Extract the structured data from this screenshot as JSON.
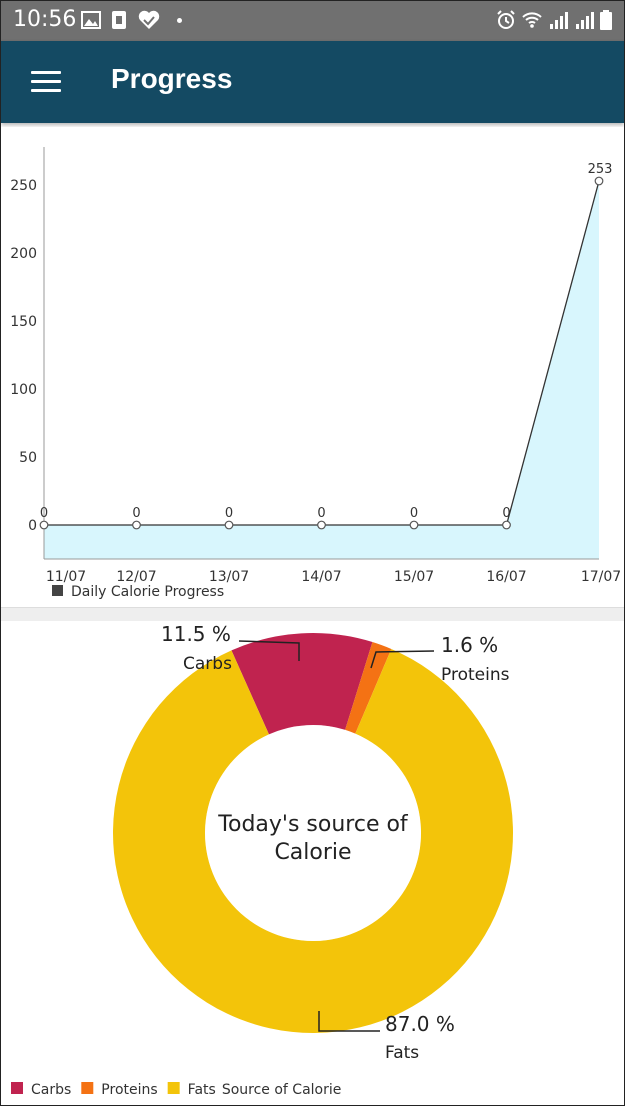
{
  "status_bar": {
    "time": "10:56"
  },
  "app_bar": {
    "title": "Progress",
    "menu_icon": "hamburger-menu-icon"
  },
  "line_chart": {
    "chart_data": {
      "type": "area",
      "categories": [
        "11/07",
        "12/07",
        "13/07",
        "14/07",
        "15/07",
        "16/07",
        "17/07"
      ],
      "series": [
        {
          "name": "Daily Calorie Progress",
          "values": [
            0,
            0,
            0,
            0,
            0,
            0,
            253
          ],
          "color": "#333333",
          "fill": "#d8f6fd"
        }
      ],
      "y_ticks": [
        "0",
        "50",
        "100",
        "150",
        "200",
        "250"
      ],
      "ylim": [
        -25,
        278
      ],
      "legend": "bottom-left",
      "grid": false
    }
  },
  "pie_chart": {
    "chart_data": {
      "type": "pie",
      "center_text": [
        "Today's source of",
        "Calorie"
      ],
      "slices": [
        {
          "label": "Carbs",
          "percent_label": "11.5 %",
          "value": 11.5,
          "color": "#c0234f"
        },
        {
          "label": "Proteins",
          "percent_label": "1.6 %",
          "value": 1.6,
          "color": "#f47214"
        },
        {
          "label": "Fats",
          "percent_label": "87.0 %",
          "value": 87.0,
          "color": "#f3c40a"
        }
      ],
      "legend_title": "Source of Calorie",
      "legend": "bottom-left"
    }
  }
}
